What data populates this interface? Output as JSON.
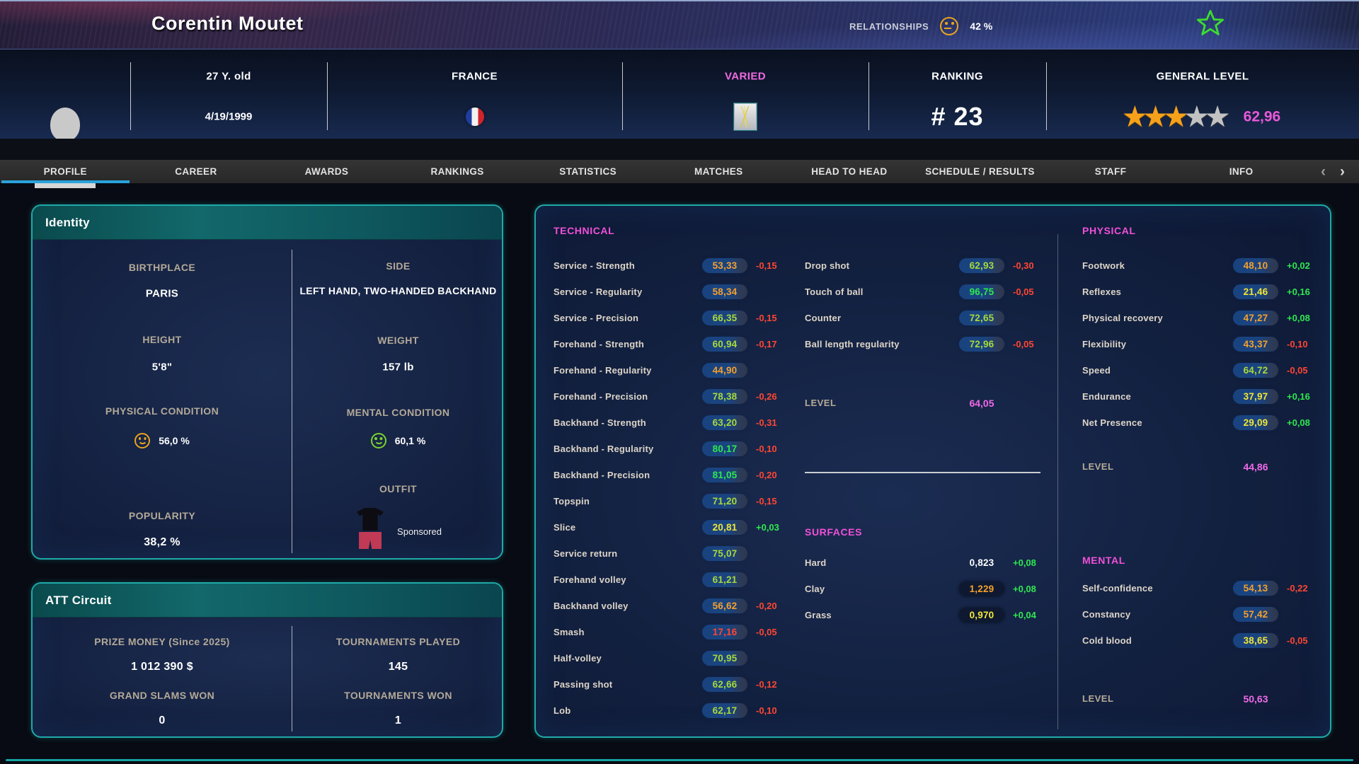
{
  "header": {
    "player_name": "Corentin Moutet",
    "relationships_label": "RELATIONSHIPS",
    "relationships_value": "42 %"
  },
  "info_bar": {
    "age": "27 Y. old",
    "birthdate": "4/19/1999",
    "country": "FRANCE",
    "play_style": "VARIED",
    "ranking_label": "RANKING",
    "ranking_value": "# 23",
    "general_level_label": "GENERAL LEVEL",
    "general_level_value": "62,96",
    "stars_filled": 3,
    "stars_total": 5
  },
  "tabs": [
    {
      "label": "PROFILE",
      "active": true
    },
    {
      "label": "CAREER"
    },
    {
      "label": "AWARDS"
    },
    {
      "label": "RANKINGS"
    },
    {
      "label": "STATISTICS"
    },
    {
      "label": "MATCHES"
    },
    {
      "label": "HEAD TO HEAD"
    },
    {
      "label": "SCHEDULE / RESULTS"
    },
    {
      "label": "STAFF"
    },
    {
      "label": "INFO"
    }
  ],
  "tab_nav": {
    "prev": "‹",
    "next": "›"
  },
  "identity": {
    "title": "Identity",
    "birthplace_label": "BIRTHPLACE",
    "birthplace": "PARIS",
    "side_label": "SIDE",
    "side": "LEFT HAND, TWO-HANDED BACKHAND",
    "height_label": "HEIGHT",
    "height": "5'8\"",
    "weight_label": "WEIGHT",
    "weight": "157 lb",
    "physical_condition_label": "PHYSICAL CONDITION",
    "physical_condition": "56,0 %",
    "mental_condition_label": "MENTAL CONDITION",
    "mental_condition": "60,1 %",
    "popularity_label": "POPULARITY",
    "popularity": "38,2 %",
    "outfit_label": "OUTFIT",
    "outfit_sponsored": "Sponsored"
  },
  "att_circuit": {
    "title": "ATT Circuit",
    "prize_money_label": "PRIZE MONEY (Since 2025)",
    "prize_money": "1 012 390 $",
    "tournaments_played_label": "TOURNAMENTS PLAYED",
    "tournaments_played": "145",
    "grand_slams_label": "GRAND SLAMS WON",
    "grand_slams": "0",
    "tournaments_won_label": "TOURNAMENTS WON",
    "tournaments_won": "1"
  },
  "stats": {
    "technical": {
      "title": "TECHNICAL",
      "rows": [
        {
          "label": "Service - Strength",
          "value": "53,33",
          "delta": "-0,15"
        },
        {
          "label": "Service - Regularity",
          "value": "58,34",
          "delta": ""
        },
        {
          "label": "Service - Precision",
          "value": "66,35",
          "delta": "-0,15"
        },
        {
          "label": "Forehand - Strength",
          "value": "60,94",
          "delta": "-0,17"
        },
        {
          "label": "Forehand - Regularity",
          "value": "44,90",
          "delta": ""
        },
        {
          "label": "Forehand - Precision",
          "value": "78,38",
          "delta": "-0,26"
        },
        {
          "label": "Backhand - Strength",
          "value": "63,20",
          "delta": "-0,31"
        },
        {
          "label": "Backhand - Regularity",
          "value": "80,17",
          "delta": "-0,10"
        },
        {
          "label": "Backhand - Precision",
          "value": "81,05",
          "delta": "-0,20"
        },
        {
          "label": "Topspin",
          "value": "71,20",
          "delta": "-0,15"
        },
        {
          "label": "Slice",
          "value": "20,81",
          "delta": "+0,03"
        },
        {
          "label": "Service return",
          "value": "75,07",
          "delta": ""
        },
        {
          "label": "Forehand volley",
          "value": "61,21",
          "delta": ""
        },
        {
          "label": "Backhand volley",
          "value": "56,62",
          "delta": "-0,20"
        },
        {
          "label": "Smash",
          "value": "17,16",
          "delta": "-0,05"
        },
        {
          "label": "Half-volley",
          "value": "70,95",
          "delta": ""
        },
        {
          "label": "Passing shot",
          "value": "62,66",
          "delta": "-0,12"
        },
        {
          "label": "Lob",
          "value": "62,17",
          "delta": "-0,10"
        }
      ]
    },
    "game": {
      "rows": [
        {
          "label": "Drop shot",
          "value": "62,93",
          "delta": "-0,30"
        },
        {
          "label": "Touch of ball",
          "value": "96,75",
          "delta": "-0,05"
        },
        {
          "label": "Counter",
          "value": "72,65",
          "delta": ""
        },
        {
          "label": "Ball length regularity",
          "value": "72,96",
          "delta": "-0,05"
        }
      ],
      "level_label": "LEVEL",
      "level": "64,05"
    },
    "surfaces": {
      "title": "SURFACES",
      "rows": [
        {
          "label": "Hard",
          "value": "0,823",
          "delta": "+0,08",
          "color": "white",
          "pill": false
        },
        {
          "label": "Clay",
          "value": "1,229",
          "delta": "+0,08",
          "color": "orange",
          "pill": true
        },
        {
          "label": "Grass",
          "value": "0,970",
          "delta": "+0,04",
          "color": "yellow",
          "pill": true
        }
      ]
    },
    "physical": {
      "title": "PHYSICAL",
      "rows": [
        {
          "label": "Footwork",
          "value": "48,10",
          "delta": "+0,02"
        },
        {
          "label": "Reflexes",
          "value": "21,46",
          "delta": "+0,16"
        },
        {
          "label": "Physical recovery",
          "value": "47,27",
          "delta": "+0,08"
        },
        {
          "label": "Flexibility",
          "value": "43,37",
          "delta": "-0,10"
        },
        {
          "label": "Speed",
          "value": "64,72",
          "delta": "-0,05"
        },
        {
          "label": "Endurance",
          "value": "37,97",
          "delta": "+0,16"
        },
        {
          "label": "Net Presence",
          "value": "29,09",
          "delta": "+0,08"
        }
      ],
      "level_label": "LEVEL",
      "level": "44,86"
    },
    "mental": {
      "title": "MENTAL",
      "rows": [
        {
          "label": "Self-confidence",
          "value": "54,13",
          "delta": "-0,22"
        },
        {
          "label": "Constancy",
          "value": "57,42",
          "delta": ""
        },
        {
          "label": "Cold blood",
          "value": "38,65",
          "delta": "-0,05"
        }
      ],
      "level_label": "LEVEL",
      "level": "50,63"
    }
  }
}
